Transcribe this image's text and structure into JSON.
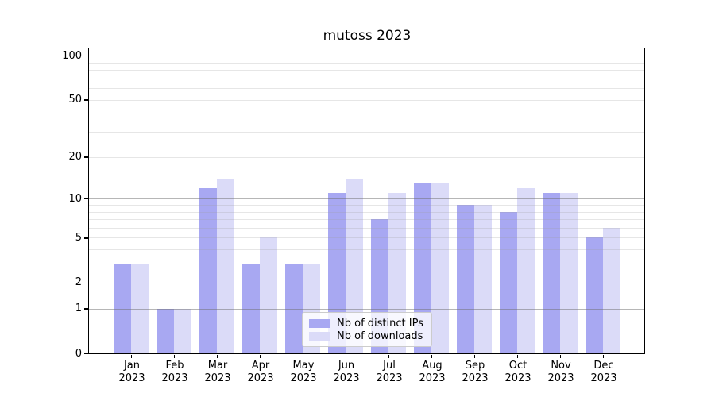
{
  "chart_data": {
    "type": "bar",
    "title": "mutoss 2023",
    "categories": [
      "Jan\n2023",
      "Feb\n2023",
      "Mar\n2023",
      "Apr\n2023",
      "May\n2023",
      "Jun\n2023",
      "Jul\n2023",
      "Aug\n2023",
      "Sep\n2023",
      "Oct\n2023",
      "Nov\n2023",
      "Dec\n2023"
    ],
    "series": [
      {
        "name": "Nb of distinct IPs",
        "color": "#a8a8f2",
        "values": [
          3,
          1,
          12,
          3,
          3,
          11,
          7,
          13,
          9,
          8,
          11,
          5
        ]
      },
      {
        "name": "Nb of downloads",
        "color": "#dbdbf8",
        "values": [
          3,
          1,
          14,
          5,
          3,
          14,
          11,
          13,
          9,
          12,
          11,
          6
        ]
      }
    ],
    "y_axis": {
      "scale": "log1p",
      "tick_values": [
        0,
        1,
        2,
        5,
        10,
        20,
        50,
        100
      ],
      "major_gridlines": [
        1,
        10,
        100
      ],
      "minor_gridlines": [
        2,
        3,
        4,
        5,
        6,
        7,
        8,
        9,
        20,
        30,
        40,
        50,
        60,
        70,
        80,
        90
      ],
      "top_value": 112
    },
    "legend": {
      "position": "lower center",
      "entries": [
        "Nb of distinct IPs",
        "Nb of downloads"
      ]
    },
    "grid": true,
    "background": "#ffffff",
    "axis_color": "#000000"
  }
}
